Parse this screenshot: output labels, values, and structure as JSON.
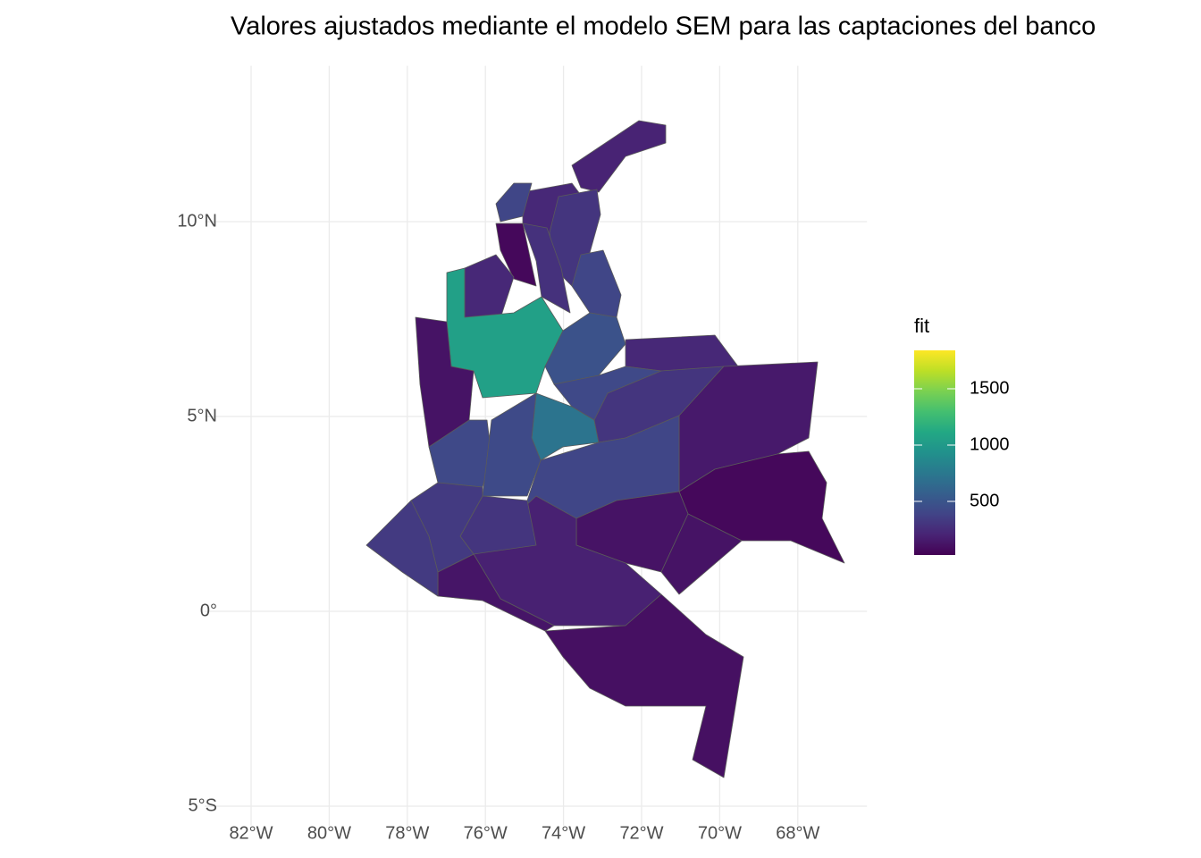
{
  "chart_data": {
    "type": "choropleth",
    "title": "Valores ajustados mediante el modelo SEM para las captaciones del banco",
    "legend_title": "fit",
    "colormap": "viridis",
    "colorlim": [
      24,
      1841
    ],
    "colorticks": [
      500,
      1000,
      1500
    ],
    "xlim": [
      -82.5,
      -66
    ],
    "ylim": [
      -5.5,
      14
    ],
    "xticks": [
      {
        "value": -82,
        "label": "82°W"
      },
      {
        "value": -80,
        "label": "80°W"
      },
      {
        "value": -78,
        "label": "78°W"
      },
      {
        "value": -76,
        "label": "76°W"
      },
      {
        "value": -74,
        "label": "74°W"
      },
      {
        "value": -72,
        "label": "72°W"
      },
      {
        "value": -70,
        "label": "70°W"
      },
      {
        "value": -68,
        "label": "68°W"
      }
    ],
    "yticks": [
      {
        "value": 10,
        "label": "10°N"
      },
      {
        "value": 5,
        "label": "5°N"
      },
      {
        "value": 0,
        "label": "0°"
      },
      {
        "value": -5,
        "label": "5°S"
      }
    ],
    "grid": true,
    "values": [
      200,
      230,
      300,
      400,
      60,
      280,
      230,
      1050,
      400,
      480,
      230,
      420,
      720,
      300,
      150,
      60,
      400,
      120,
      120,
      190,
      130,
      100,
      120,
      420,
      430,
      300,
      330,
      330
    ]
  }
}
